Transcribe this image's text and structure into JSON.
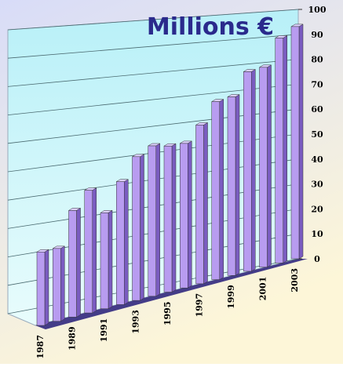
{
  "chart_data": {
    "type": "bar3d",
    "title": "Millions €",
    "categories": [
      "1987",
      null,
      "1989",
      null,
      "1991",
      null,
      "1993",
      null,
      "1995",
      null,
      "1997",
      null,
      "1999",
      null,
      "2001",
      null,
      "2003"
    ],
    "values": [
      25,
      25,
      37,
      43,
      34,
      44,
      52,
      55,
      54,
      54,
      60,
      68,
      69,
      78,
      79,
      90,
      94
    ],
    "color": "#b89cf0",
    "ylim": [
      0,
      100
    ],
    "yticks": [
      0,
      10,
      20,
      30,
      40,
      50,
      60,
      70,
      80,
      90,
      100
    ],
    "grid": true
  }
}
